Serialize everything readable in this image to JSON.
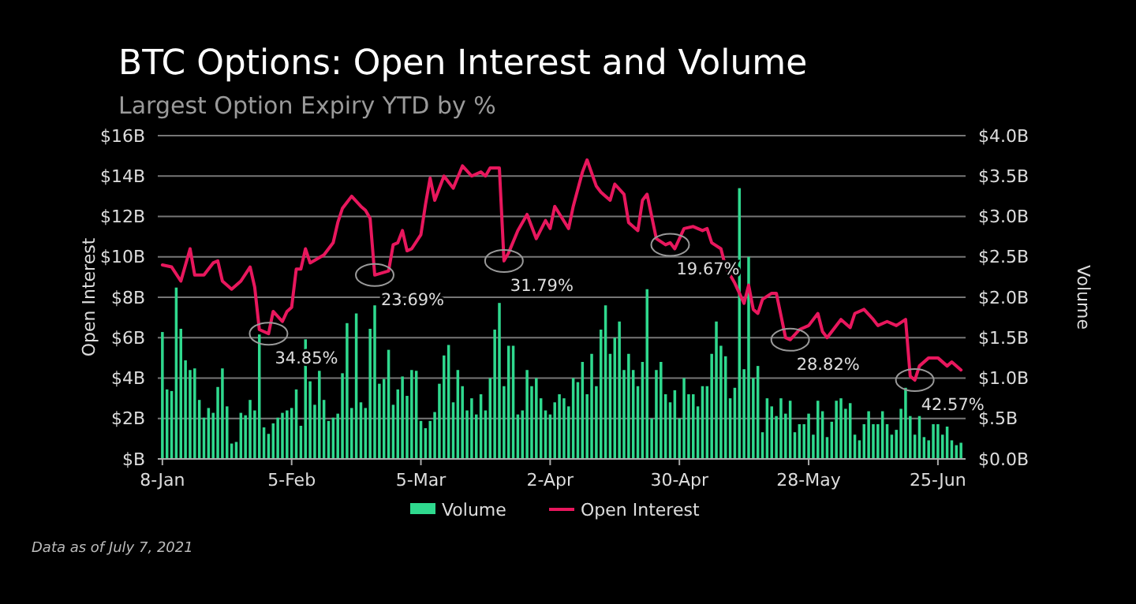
{
  "chart_data": {
    "type": "bar",
    "title": "BTC Options: Open Interest and Volume",
    "subtitle": "Largest Option Expiry YTD by %",
    "ylabel": "Open Interest",
    "y2label": "Volume",
    "xlim": [
      "2021-01-07",
      "2021-07-01"
    ],
    "xticks": [
      {
        "value": "2021-01-08",
        "label": "8-Jan"
      },
      {
        "value": "2021-02-05",
        "label": "5-Feb"
      },
      {
        "value": "2021-03-05",
        "label": "5-Mar"
      },
      {
        "value": "2021-04-02",
        "label": "2-Apr"
      },
      {
        "value": "2021-04-30",
        "label": "30-Apr"
      },
      {
        "value": "2021-05-28",
        "label": "28-May"
      },
      {
        "value": "2021-06-25",
        "label": "25-Jun"
      }
    ],
    "ylim": [
      0,
      16
    ],
    "yticks": [
      {
        "value": 0,
        "label": "$B"
      },
      {
        "value": 2,
        "label": "$2B"
      },
      {
        "value": 4,
        "label": "$4B"
      },
      {
        "value": 6,
        "label": "$6B"
      },
      {
        "value": 8,
        "label": "$8B"
      },
      {
        "value": 10,
        "label": "$10B"
      },
      {
        "value": 12,
        "label": "$12B"
      },
      {
        "value": 14,
        "label": "$14B"
      },
      {
        "value": 16,
        "label": "$16B"
      }
    ],
    "y2lim": [
      0,
      4
    ],
    "y2ticks": [
      {
        "value": 0,
        "label": "$0.0B"
      },
      {
        "value": 0.5,
        "label": "$.5B"
      },
      {
        "value": 1,
        "label": "$1.0B"
      },
      {
        "value": 1.5,
        "label": "$1.5B"
      },
      {
        "value": 2,
        "label": "$2.0B"
      },
      {
        "value": 2.5,
        "label": "$2.5B"
      },
      {
        "value": 3,
        "label": "$3.0B"
      },
      {
        "value": 3.5,
        "label": "$3.5B"
      },
      {
        "value": 4,
        "label": "$4.0B"
      }
    ],
    "grid": "y",
    "legend": "bottom",
    "series": [
      {
        "name": "Volume",
        "axis": "y2",
        "color": "#2fd98e",
        "x": [
          "2021-01-08",
          "2021-01-09",
          "2021-01-10",
          "2021-01-11",
          "2021-01-12",
          "2021-01-13",
          "2021-01-14",
          "2021-01-15",
          "2021-01-16",
          "2021-01-17",
          "2021-01-18",
          "2021-01-19",
          "2021-01-20",
          "2021-01-21",
          "2021-01-22",
          "2021-01-23",
          "2021-01-24",
          "2021-01-25",
          "2021-01-26",
          "2021-01-27",
          "2021-01-28",
          "2021-01-29",
          "2021-01-30",
          "2021-01-31",
          "2021-02-01",
          "2021-02-02",
          "2021-02-03",
          "2021-02-04",
          "2021-02-05",
          "2021-02-06",
          "2021-02-07",
          "2021-02-08",
          "2021-02-09",
          "2021-02-10",
          "2021-02-11",
          "2021-02-12",
          "2021-02-13",
          "2021-02-14",
          "2021-02-15",
          "2021-02-16",
          "2021-02-17",
          "2021-02-18",
          "2021-02-19",
          "2021-02-20",
          "2021-02-21",
          "2021-02-22",
          "2021-02-23",
          "2021-02-24",
          "2021-02-25",
          "2021-02-26",
          "2021-02-27",
          "2021-02-28",
          "2021-03-01",
          "2021-03-02",
          "2021-03-03",
          "2021-03-04",
          "2021-03-05",
          "2021-03-06",
          "2021-03-07",
          "2021-03-08",
          "2021-03-09",
          "2021-03-10",
          "2021-03-11",
          "2021-03-12",
          "2021-03-13",
          "2021-03-14",
          "2021-03-15",
          "2021-03-16",
          "2021-03-17",
          "2021-03-18",
          "2021-03-19",
          "2021-03-20",
          "2021-03-21",
          "2021-03-22",
          "2021-03-23",
          "2021-03-24",
          "2021-03-25",
          "2021-03-26",
          "2021-03-27",
          "2021-03-28",
          "2021-03-29",
          "2021-03-30",
          "2021-03-31",
          "2021-04-01",
          "2021-04-02",
          "2021-04-03",
          "2021-04-04",
          "2021-04-05",
          "2021-04-06",
          "2021-04-07",
          "2021-04-08",
          "2021-04-09",
          "2021-04-10",
          "2021-04-11",
          "2021-04-12",
          "2021-04-13",
          "2021-04-14",
          "2021-04-15",
          "2021-04-16",
          "2021-04-17",
          "2021-04-18",
          "2021-04-19",
          "2021-04-20",
          "2021-04-21",
          "2021-04-22",
          "2021-04-23",
          "2021-04-24",
          "2021-04-25",
          "2021-04-26",
          "2021-04-27",
          "2021-04-28",
          "2021-04-29",
          "2021-04-30",
          "2021-05-01",
          "2021-05-02",
          "2021-05-03",
          "2021-05-04",
          "2021-05-05",
          "2021-05-06",
          "2021-05-07",
          "2021-05-08",
          "2021-05-09",
          "2021-05-10",
          "2021-05-11",
          "2021-05-12",
          "2021-05-13",
          "2021-05-14",
          "2021-05-15",
          "2021-05-16",
          "2021-05-17",
          "2021-05-18",
          "2021-05-19",
          "2021-05-20",
          "2021-05-21",
          "2021-05-22",
          "2021-05-23",
          "2021-05-24",
          "2021-05-25",
          "2021-05-26",
          "2021-05-27",
          "2021-05-28",
          "2021-05-29",
          "2021-05-30",
          "2021-05-31",
          "2021-06-01",
          "2021-06-02",
          "2021-06-03",
          "2021-06-04",
          "2021-06-05",
          "2021-06-06",
          "2021-06-07",
          "2021-06-08",
          "2021-06-09",
          "2021-06-10",
          "2021-06-11",
          "2021-06-12",
          "2021-06-13",
          "2021-06-14",
          "2021-06-15",
          "2021-06-16",
          "2021-06-17",
          "2021-06-18",
          "2021-06-19",
          "2021-06-20",
          "2021-06-21",
          "2021-06-22",
          "2021-06-23",
          "2021-06-24",
          "2021-06-25",
          "2021-06-26",
          "2021-06-27",
          "2021-06-28",
          "2021-06-29",
          "2021-06-30"
        ],
        "values": [
          1.57,
          0.86,
          0.84,
          2.12,
          1.61,
          1.22,
          1.1,
          1.12,
          0.73,
          0.51,
          0.63,
          0.57,
          0.89,
          1.12,
          0.65,
          0.19,
          0.21,
          0.57,
          0.54,
          0.73,
          0.6,
          1.54,
          0.39,
          0.31,
          0.44,
          0.51,
          0.57,
          0.6,
          0.63,
          0.86,
          0.41,
          1.48,
          0.96,
          0.67,
          1.09,
          0.73,
          0.47,
          0.51,
          0.56,
          1.06,
          1.68,
          0.63,
          1.8,
          0.7,
          0.63,
          1.61,
          1.9,
          0.93,
          0.99,
          1.35,
          0.67,
          0.86,
          1.02,
          0.78,
          1.1,
          1.09,
          0.47,
          0.38,
          0.47,
          0.58,
          0.93,
          1.28,
          1.41,
          0.7,
          1.1,
          0.9,
          0.6,
          0.75,
          0.55,
          0.8,
          0.6,
          1.0,
          1.6,
          1.93,
          0.9,
          1.4,
          1.4,
          0.55,
          0.6,
          1.1,
          0.9,
          1.0,
          0.75,
          0.6,
          0.55,
          0.7,
          0.8,
          0.75,
          0.65,
          1.0,
          0.95,
          1.2,
          0.8,
          1.3,
          0.9,
          1.6,
          1.9,
          1.3,
          1.5,
          1.7,
          1.1,
          1.3,
          1.1,
          0.9,
          1.2,
          2.1,
          0.5,
          1.1,
          1.2,
          0.8,
          0.7,
          0.85,
          0.5,
          1.0,
          0.8,
          0.8,
          0.65,
          0.9,
          0.9,
          1.3,
          1.7,
          1.4,
          1.27,
          0.75,
          0.88,
          3.35,
          1.11,
          2.5,
          1.0,
          1.15,
          0.33,
          0.75,
          0.65,
          0.53,
          0.75,
          0.56,
          0.72,
          0.33,
          0.43,
          0.43,
          0.56,
          0.3,
          0.72,
          0.59,
          0.27,
          0.46,
          0.72,
          0.75,
          0.62,
          0.69,
          0.3,
          0.23,
          0.43,
          0.59,
          0.43,
          0.43,
          0.59,
          0.43,
          0.3,
          0.36,
          0.62,
          0.88,
          0.53,
          0.3,
          0.53,
          0.27,
          0.23,
          0.43,
          0.43,
          0.3,
          0.4,
          0.23,
          0.17,
          0.2
        ]
      },
      {
        "name": "Open Interest",
        "type": "line",
        "color": "#e8175d",
        "x": [
          "2021-01-08",
          "2021-01-10",
          "2021-01-12",
          "2021-01-14",
          "2021-01-15",
          "2021-01-17",
          "2021-01-19",
          "2021-01-20",
          "2021-01-21",
          "2021-01-23",
          "2021-01-25",
          "2021-01-27",
          "2021-01-28",
          "2021-01-29",
          "2021-01-31",
          "2021-02-01",
          "2021-02-03",
          "2021-02-04",
          "2021-02-05",
          "2021-02-06",
          "2021-02-07",
          "2021-02-08",
          "2021-02-09",
          "2021-02-12",
          "2021-02-14",
          "2021-02-15",
          "2021-02-16",
          "2021-02-18",
          "2021-02-20",
          "2021-02-21",
          "2021-02-22",
          "2021-02-23",
          "2021-02-26",
          "2021-02-27",
          "2021-02-28",
          "2021-03-01",
          "2021-03-02",
          "2021-03-03",
          "2021-03-05",
          "2021-03-06",
          "2021-03-07",
          "2021-03-08",
          "2021-03-10",
          "2021-03-12",
          "2021-03-14",
          "2021-03-16",
          "2021-03-18",
          "2021-03-19",
          "2021-03-20",
          "2021-03-22",
          "2021-03-23",
          "2021-03-24",
          "2021-03-26",
          "2021-03-28",
          "2021-03-30",
          "2021-04-01",
          "2021-04-02",
          "2021-04-03",
          "2021-04-06",
          "2021-04-07",
          "2021-04-09",
          "2021-04-10",
          "2021-04-12",
          "2021-04-13",
          "2021-04-15",
          "2021-04-16",
          "2021-04-18",
          "2021-04-19",
          "2021-04-21",
          "2021-04-22",
          "2021-04-23",
          "2021-04-25",
          "2021-04-27",
          "2021-04-28",
          "2021-04-29",
          "2021-05-01",
          "2021-05-03",
          "2021-05-05",
          "2021-05-06",
          "2021-05-07",
          "2021-05-09",
          "2021-05-10",
          "2021-05-12",
          "2021-05-14",
          "2021-05-15",
          "2021-05-16",
          "2021-05-17",
          "2021-05-18",
          "2021-05-20",
          "2021-05-21",
          "2021-05-23",
          "2021-05-24",
          "2021-05-26",
          "2021-05-28",
          "2021-05-30",
          "2021-05-31",
          "2021-06-01",
          "2021-06-04",
          "2021-06-06",
          "2021-06-07",
          "2021-06-09",
          "2021-06-11",
          "2021-06-12",
          "2021-06-14",
          "2021-06-16",
          "2021-06-18",
          "2021-06-19",
          "2021-06-20",
          "2021-06-21",
          "2021-06-23",
          "2021-06-25",
          "2021-06-27",
          "2021-06-28",
          "2021-06-30"
        ],
        "values": [
          9.6,
          9.5,
          8.8,
          10.4,
          9.1,
          9.1,
          9.7,
          9.8,
          8.8,
          8.4,
          8.8,
          9.5,
          8.5,
          6.4,
          6.2,
          7.3,
          6.8,
          7.3,
          7.5,
          9.4,
          9.4,
          10.4,
          9.7,
          10.1,
          10.7,
          11.7,
          12.4,
          13.0,
          12.5,
          12.3,
          11.9,
          9.1,
          9.3,
          10.6,
          10.7,
          11.3,
          10.3,
          10.4,
          11.1,
          12.6,
          13.9,
          12.8,
          14.0,
          13.4,
          14.5,
          14.0,
          14.2,
          14.0,
          14.4,
          14.4,
          9.8,
          10.2,
          11.3,
          12.1,
          10.9,
          11.8,
          11.4,
          12.5,
          11.4,
          12.5,
          14.2,
          14.8,
          13.5,
          13.2,
          12.8,
          13.6,
          13.1,
          11.7,
          11.3,
          12.8,
          13.1,
          10.9,
          10.6,
          10.7,
          10.4,
          11.4,
          11.5,
          11.3,
          11.4,
          10.7,
          10.4,
          9.5,
          8.7,
          7.7,
          8.6,
          7.4,
          7.2,
          7.9,
          8.2,
          8.2,
          6.0,
          5.9,
          6.4,
          6.6,
          7.2,
          6.3,
          6.0,
          6.9,
          6.5,
          7.2,
          7.4,
          6.9,
          6.6,
          6.8,
          6.6,
          6.9,
          4.1,
          3.9,
          4.6,
          5.0,
          5.0,
          4.6,
          4.8,
          4.4
        ]
      }
    ],
    "annotations": [
      {
        "text": "34.85%",
        "x": "2021-01-31",
        "y": 6.2
      },
      {
        "text": "23.69%",
        "x": "2021-02-23",
        "y": 9.1
      },
      {
        "text": "31.79%",
        "x": "2021-03-23",
        "y": 9.8
      },
      {
        "text": "19.67%",
        "x": "2021-04-28",
        "y": 10.6
      },
      {
        "text": "28.82%",
        "x": "2021-05-24",
        "y": 5.9
      },
      {
        "text": "42.57%",
        "x": "2021-06-20",
        "y": 3.9
      },
      "Data as of July 7, 2021"
    ]
  }
}
